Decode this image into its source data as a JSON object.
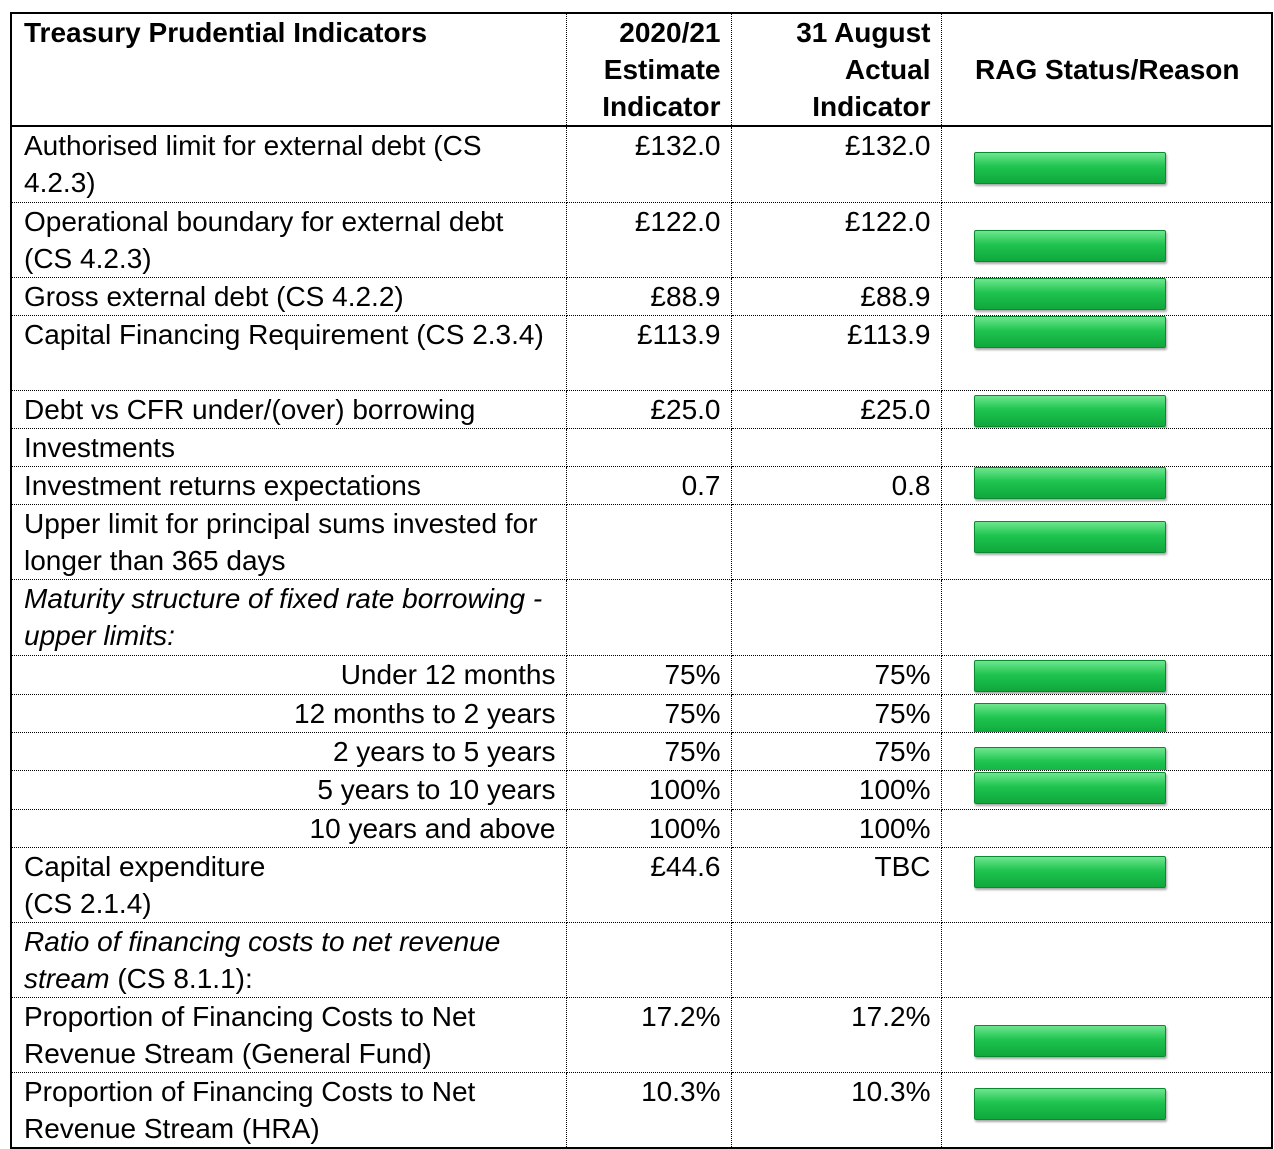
{
  "header": [
    "Treasury Prudential Indicators",
    "2020/21 Estimate Indicator",
    "31 August Actual Indicator",
    "RAG Status/Reason"
  ],
  "rows": [
    {
      "label": "Authorised limit for external debt (CS 4.2.3)",
      "estimate": "£132.0",
      "actual": "£132.0"
    },
    {
      "label": "Operational boundary for external debt (CS 4.2.3)",
      "estimate": "£122.0",
      "actual": "£122.0"
    },
    {
      "label": "Gross external debt (CS 4.2.2)",
      "estimate": "£88.9",
      "actual": "£88.9"
    },
    {
      "label": "Capital Financing Requirement (CS 2.3.4)",
      "estimate": "£113.9",
      "actual": "£113.9"
    },
    {
      "label": "Debt vs  CFR under/(over) borrowing",
      "estimate": "£25.0",
      "actual": "£25.0"
    },
    {
      "label": "Investments"
    },
    {
      "label": "Investment returns expectations",
      "estimate": "0.7",
      "actual": "0.8"
    },
    {
      "label": "Upper limit for principal sums invested for longer than 365 days"
    },
    {
      "label_italic": "Maturity structure of fixed rate borrowing  - upper limits:"
    },
    {
      "label": "Under 12 months",
      "estimate": "75%",
      "actual": "75%"
    },
    {
      "label": "12 months to 2 years",
      "estimate": "75%",
      "actual": "75%"
    },
    {
      "label": "2 years to 5 years",
      "estimate": "75%",
      "actual": "75%"
    },
    {
      "label": "5 years to 10 years",
      "estimate": "100%",
      "actual": "100%"
    },
    {
      "label": "10 years and above",
      "estimate": "100%",
      "actual": "100%"
    },
    {
      "label": "Capital expenditure\n(CS 2.1.4)",
      "estimate": "£44.6",
      "actual": "TBC"
    },
    {
      "label_italic": "Ratio of financing costs to net revenue stream",
      "label": "(CS 8.1.1):"
    },
    {
      "label": "Proportion of Financing Costs to Net Revenue Stream (General Fund)",
      "estimate": "17.2%",
      "actual": "17.2%"
    },
    {
      "label": "Proportion of Financing Costs to Net Revenue Stream (HRA)",
      "estimate": "10.3%",
      "actual": "10.3%"
    }
  ]
}
